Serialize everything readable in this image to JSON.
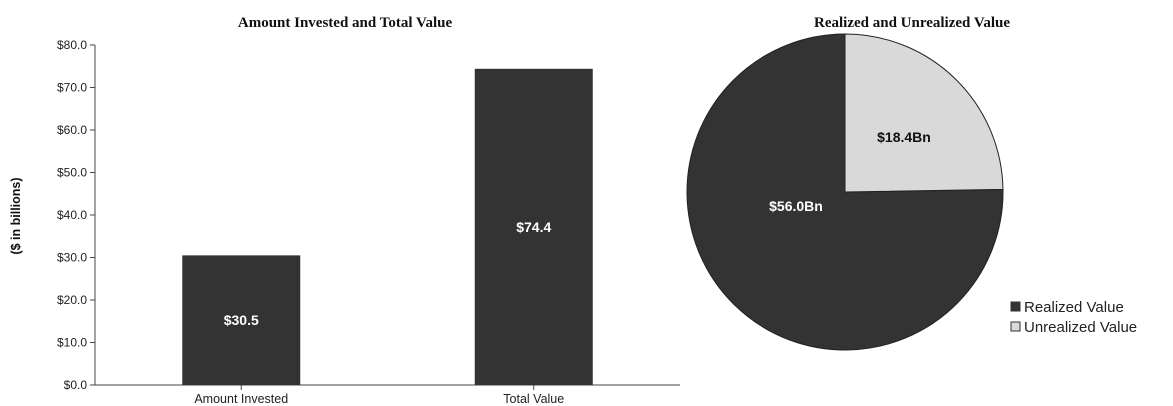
{
  "chart_data": [
    {
      "type": "bar",
      "title": "Amount Invested and Total Value",
      "xlabel": "",
      "ylabel": "($ in billions)",
      "ylim": [
        0,
        80
      ],
      "yticks": [
        "$0.0",
        "$10.0",
        "$20.0",
        "$30.0",
        "$40.0",
        "$50.0",
        "$60.0",
        "$70.0",
        "$80.0"
      ],
      "categories": [
        "Amount Invested",
        "Total Value"
      ],
      "values": [
        30.5,
        74.4
      ],
      "data_labels": [
        "$30.5",
        "$74.4"
      ],
      "bar_color": "#333333",
      "label_color": "#ffffff",
      "grid": false
    },
    {
      "type": "pie",
      "title": "Realized and Unrealized Value",
      "categories": [
        "Realized Value",
        "Unrealized Value"
      ],
      "values": [
        56.0,
        18.4
      ],
      "data_labels": [
        "$56.0Bn",
        "$18.4Bn"
      ],
      "colors": [
        "#333333",
        "#d9d9d9"
      ],
      "label_colors": [
        "#ffffff",
        "#111111"
      ],
      "legend_position": "bottom-right"
    }
  ]
}
